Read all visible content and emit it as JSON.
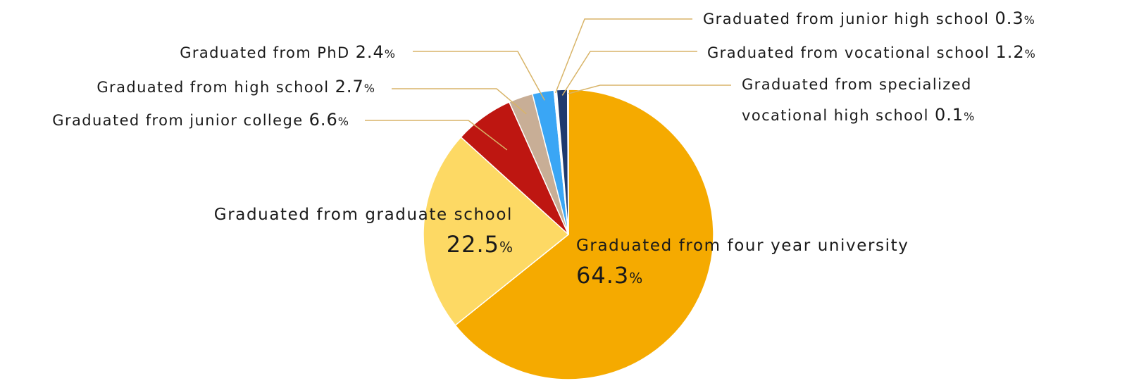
{
  "chart_data": {
    "type": "pie",
    "slices": [
      {
        "label": "Graduated from four year university",
        "value": 64.3,
        "value_text": "64.3",
        "color": "#F5AA00"
      },
      {
        "label": "Graduated from graduate school",
        "value": 22.5,
        "value_text": "22.5",
        "color": "#FDD964"
      },
      {
        "label": "Graduated from junior college",
        "value": 6.6,
        "value_text": "6.6",
        "color": "#BE1611"
      },
      {
        "label": "Graduated from high school",
        "value": 2.7,
        "value_text": "2.7",
        "color": "#C8AE96"
      },
      {
        "label": "Graduated from PhD",
        "value": 2.4,
        "value_text": "2.4",
        "color": "#3AA6F5"
      },
      {
        "label": "Graduated from junior high school",
        "value": 0.3,
        "value_text": "0.3",
        "color": "#FFFFFF"
      },
      {
        "label": "Graduated from vocational school",
        "value": 1.2,
        "value_text": "1.2",
        "color": "#1F3A6E"
      },
      {
        "label": "Graduated from specialized vocational high school",
        "label_line1": "Graduated from specialized",
        "label_line2": "vocational high school",
        "value": 0.1,
        "value_text": "0.1",
        "color": "#D0D6E6"
      }
    ],
    "unit": "%",
    "leader_color": "#D8B468",
    "start": "top",
    "direction": "clockwise"
  }
}
